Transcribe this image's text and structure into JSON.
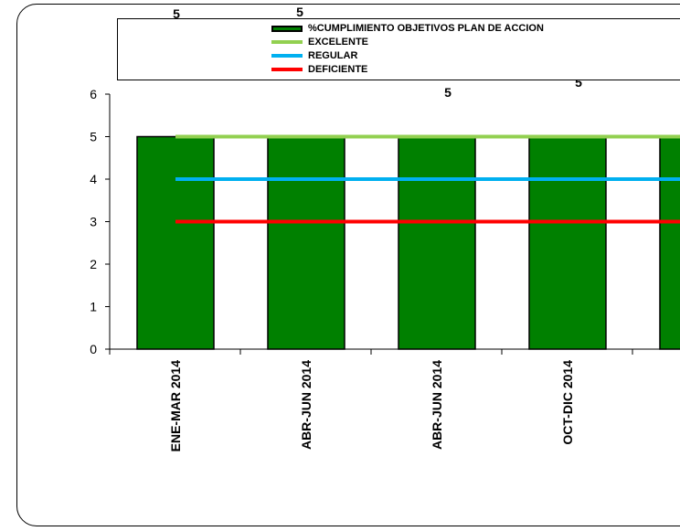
{
  "chart_data": {
    "type": "bar",
    "categories": [
      "ENE-MAR 2014",
      "ABR-JUN 2014",
      "ABR-JUN 2014",
      "OCT-DIC 2014",
      ""
    ],
    "series": [
      {
        "name": "%CUMPLIMIENTO OBJETIVOS PLAN DE ACCION",
        "type": "bar",
        "color": "#008000",
        "values": [
          5,
          5,
          5,
          5,
          5
        ]
      },
      {
        "name": "EXCELENTE",
        "type": "line",
        "color": "#92d050",
        "values": [
          5,
          5,
          5,
          5,
          5
        ]
      },
      {
        "name": "REGULAR",
        "type": "line",
        "color": "#00b0f0",
        "values": [
          4,
          4,
          4,
          4,
          4
        ]
      },
      {
        "name": "DEFICIENTE",
        "type": "line",
        "color": "#ff0000",
        "values": [
          3,
          3,
          3,
          3,
          3
        ]
      }
    ],
    "data_labels": [
      "5",
      "5",
      "5",
      "5"
    ],
    "ylim": [
      0,
      6
    ],
    "yticks": [
      0,
      1,
      2,
      3,
      4,
      5,
      6
    ],
    "grid": false,
    "legend_position": "top"
  }
}
